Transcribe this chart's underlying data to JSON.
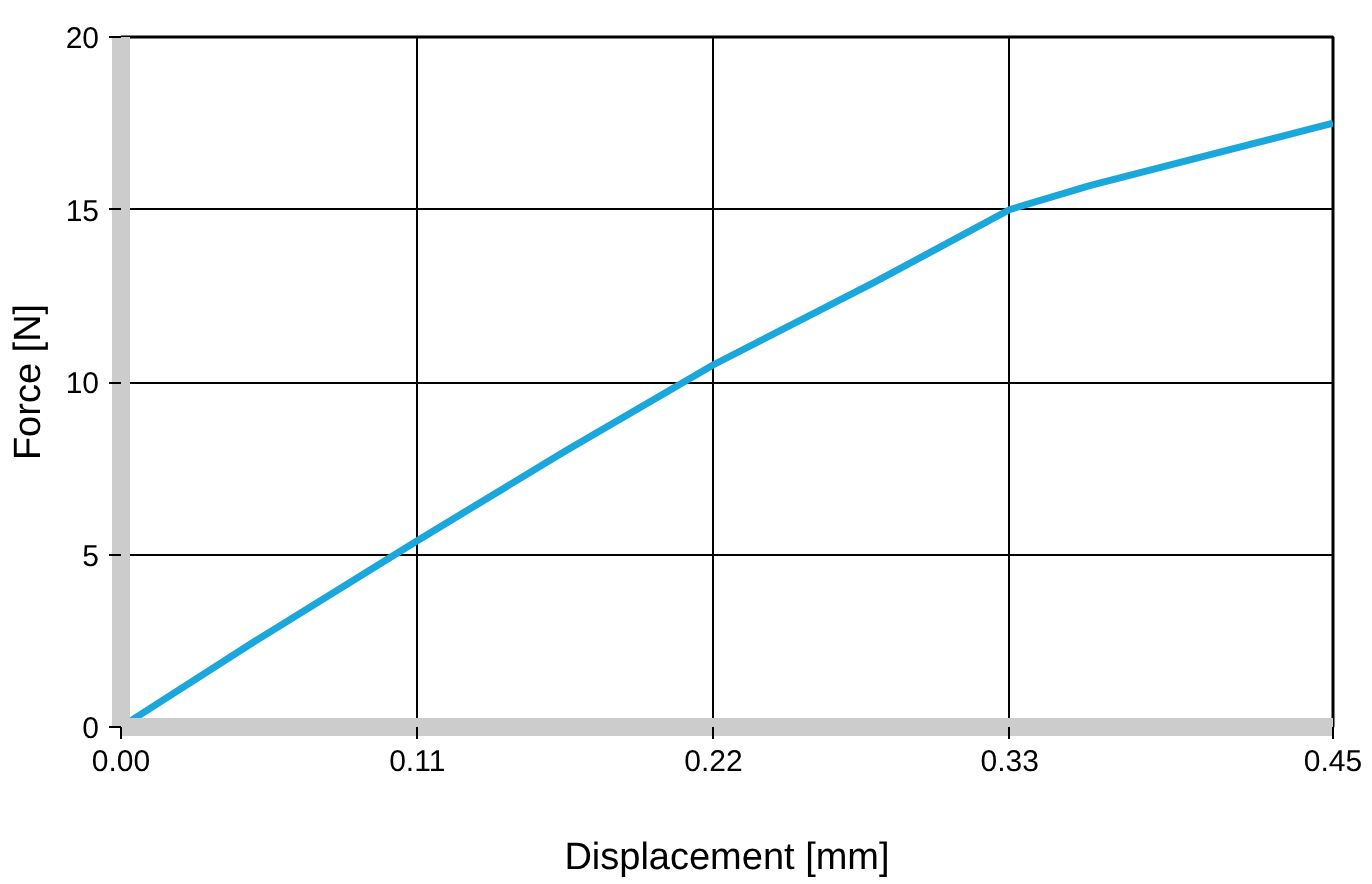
{
  "chart_data": {
    "type": "line",
    "xlabel": "Displacement [mm]",
    "ylabel": "Force [N]",
    "x": [
      0.004,
      0.05,
      0.11,
      0.165,
      0.22,
      0.28,
      0.33,
      0.36,
      0.39,
      0.42,
      0.45
    ],
    "series": [
      {
        "color": "#1aa7dc",
        "values": [
          0.2,
          2.5,
          5.4,
          8.0,
          10.5,
          12.9,
          15.0,
          15.7,
          16.3,
          16.9,
          17.5
        ]
      }
    ],
    "xlim": [
      0,
      0.45
    ],
    "ylim": [
      0,
      20
    ],
    "xticks": [
      {
        "value": 0,
        "label": "0.00"
      },
      0.11,
      0.22,
      0.33,
      0.45
    ],
    "yticks": [
      0,
      5,
      10,
      15,
      20
    ],
    "grid": true,
    "marker": "none",
    "line_style": "solid"
  }
}
